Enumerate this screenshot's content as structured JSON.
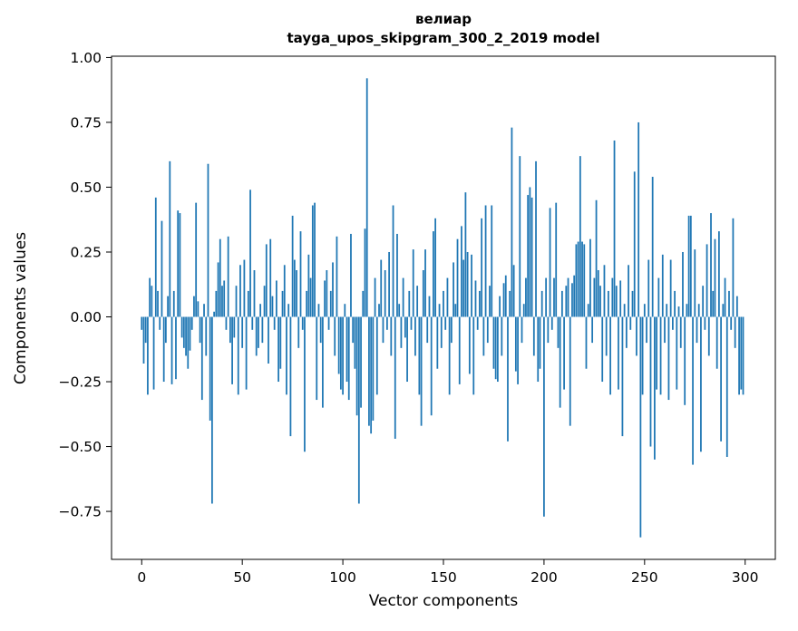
{
  "chart_data": {
    "type": "bar",
    "title": "велиар",
    "subtitle": "tayga_upos_skipgram_300_2_2019 model",
    "xlabel": "Vector components",
    "ylabel": "Components values",
    "bar_color": "#1f77b4",
    "grid": false,
    "legend": "none",
    "xlim": [
      -15,
      315
    ],
    "ylim": [
      -0.935,
      1.005
    ],
    "xticks": [
      0,
      50,
      100,
      150,
      200,
      250,
      300
    ],
    "yticks": [
      -0.75,
      -0.5,
      -0.25,
      0.0,
      0.25,
      0.5,
      0.75,
      1.0
    ],
    "x_is_index": true,
    "n_components": 300,
    "values": [
      -0.05,
      -0.18,
      -0.1,
      -0.3,
      0.15,
      0.12,
      -0.28,
      0.46,
      0.1,
      -0.05,
      0.37,
      -0.25,
      -0.1,
      0.08,
      0.6,
      -0.26,
      0.1,
      -0.24,
      0.41,
      0.4,
      -0.08,
      -0.12,
      -0.15,
      -0.2,
      -0.13,
      -0.05,
      0.08,
      0.44,
      0.06,
      -0.1,
      -0.32,
      0.05,
      -0.15,
      0.59,
      -0.4,
      -0.72,
      0.02,
      0.1,
      0.21,
      0.3,
      0.12,
      0.14,
      -0.05,
      0.31,
      -0.1,
      -0.26,
      -0.08,
      0.12,
      -0.3,
      0.2,
      -0.12,
      0.22,
      -0.28,
      0.1,
      0.49,
      -0.05,
      0.18,
      -0.15,
      -0.12,
      0.05,
      -0.1,
      0.12,
      0.28,
      -0.18,
      0.3,
      0.08,
      -0.05,
      0.14,
      -0.25,
      -0.2,
      0.1,
      0.2,
      -0.3,
      0.05,
      -0.46,
      0.39,
      0.22,
      0.18,
      -0.12,
      0.33,
      -0.05,
      -0.52,
      0.1,
      0.24,
      0.15,
      0.43,
      0.44,
      -0.32,
      0.05,
      -0.1,
      -0.35,
      0.14,
      0.18,
      -0.05,
      0.1,
      0.21,
      -0.15,
      0.31,
      -0.22,
      -0.28,
      -0.3,
      0.05,
      -0.25,
      -0.32,
      0.32,
      -0.1,
      -0.2,
      -0.38,
      -0.72,
      -0.35,
      0.1,
      0.34,
      0.92,
      -0.42,
      -0.45,
      -0.4,
      0.15,
      -0.3,
      0.05,
      0.22,
      -0.1,
      0.18,
      -0.05,
      0.25,
      -0.15,
      0.43,
      -0.47,
      0.32,
      0.05,
      -0.12,
      0.15,
      -0.08,
      -0.25,
      0.1,
      -0.05,
      0.26,
      -0.15,
      0.12,
      -0.3,
      -0.42,
      0.18,
      0.26,
      -0.1,
      0.08,
      -0.38,
      0.33,
      0.38,
      -0.2,
      0.05,
      -0.12,
      0.1,
      -0.05,
      0.15,
      -0.3,
      -0.1,
      0.21,
      0.05,
      0.3,
      -0.26,
      0.35,
      0.22,
      0.48,
      0.25,
      -0.22,
      0.24,
      -0.3,
      0.14,
      -0.05,
      0.1,
      0.38,
      -0.15,
      0.43,
      -0.1,
      0.12,
      0.43,
      -0.2,
      -0.24,
      -0.25,
      0.08,
      -0.15,
      0.13,
      0.16,
      -0.48,
      0.1,
      0.73,
      0.2,
      -0.21,
      -0.26,
      0.62,
      -0.1,
      0.05,
      0.15,
      0.47,
      0.5,
      0.46,
      -0.15,
      0.6,
      -0.25,
      -0.2,
      0.1,
      -0.77,
      0.15,
      -0.1,
      0.42,
      -0.05,
      0.15,
      0.44,
      -0.12,
      -0.35,
      0.1,
      -0.28,
      0.12,
      0.15,
      -0.42,
      0.13,
      0.16,
      0.28,
      0.29,
      0.62,
      0.29,
      0.28,
      -0.2,
      0.05,
      0.3,
      -0.1,
      0.15,
      0.45,
      0.18,
      0.12,
      -0.25,
      0.2,
      -0.15,
      0.1,
      -0.3,
      0.15,
      0.68,
      0.12,
      -0.28,
      0.14,
      -0.46,
      0.05,
      -0.12,
      0.2,
      -0.05,
      0.1,
      0.56,
      -0.15,
      0.75,
      -0.85,
      -0.3,
      0.05,
      -0.1,
      0.22,
      -0.5,
      0.54,
      -0.55,
      -0.28,
      0.15,
      -0.3,
      0.24,
      -0.1,
      0.05,
      -0.32,
      0.22,
      -0.05,
      0.1,
      -0.28,
      0.04,
      -0.12,
      0.25,
      -0.34,
      0.05,
      0.39,
      0.39,
      -0.57,
      0.26,
      -0.1,
      0.05,
      -0.52,
      0.12,
      -0.05,
      0.28,
      -0.15,
      0.4,
      0.1,
      0.3,
      -0.2,
      0.33,
      -0.48,
      0.05,
      0.15,
      -0.54,
      0.1,
      -0.05,
      0.38,
      -0.12,
      0.08,
      -0.3,
      -0.28,
      -0.3
    ]
  }
}
